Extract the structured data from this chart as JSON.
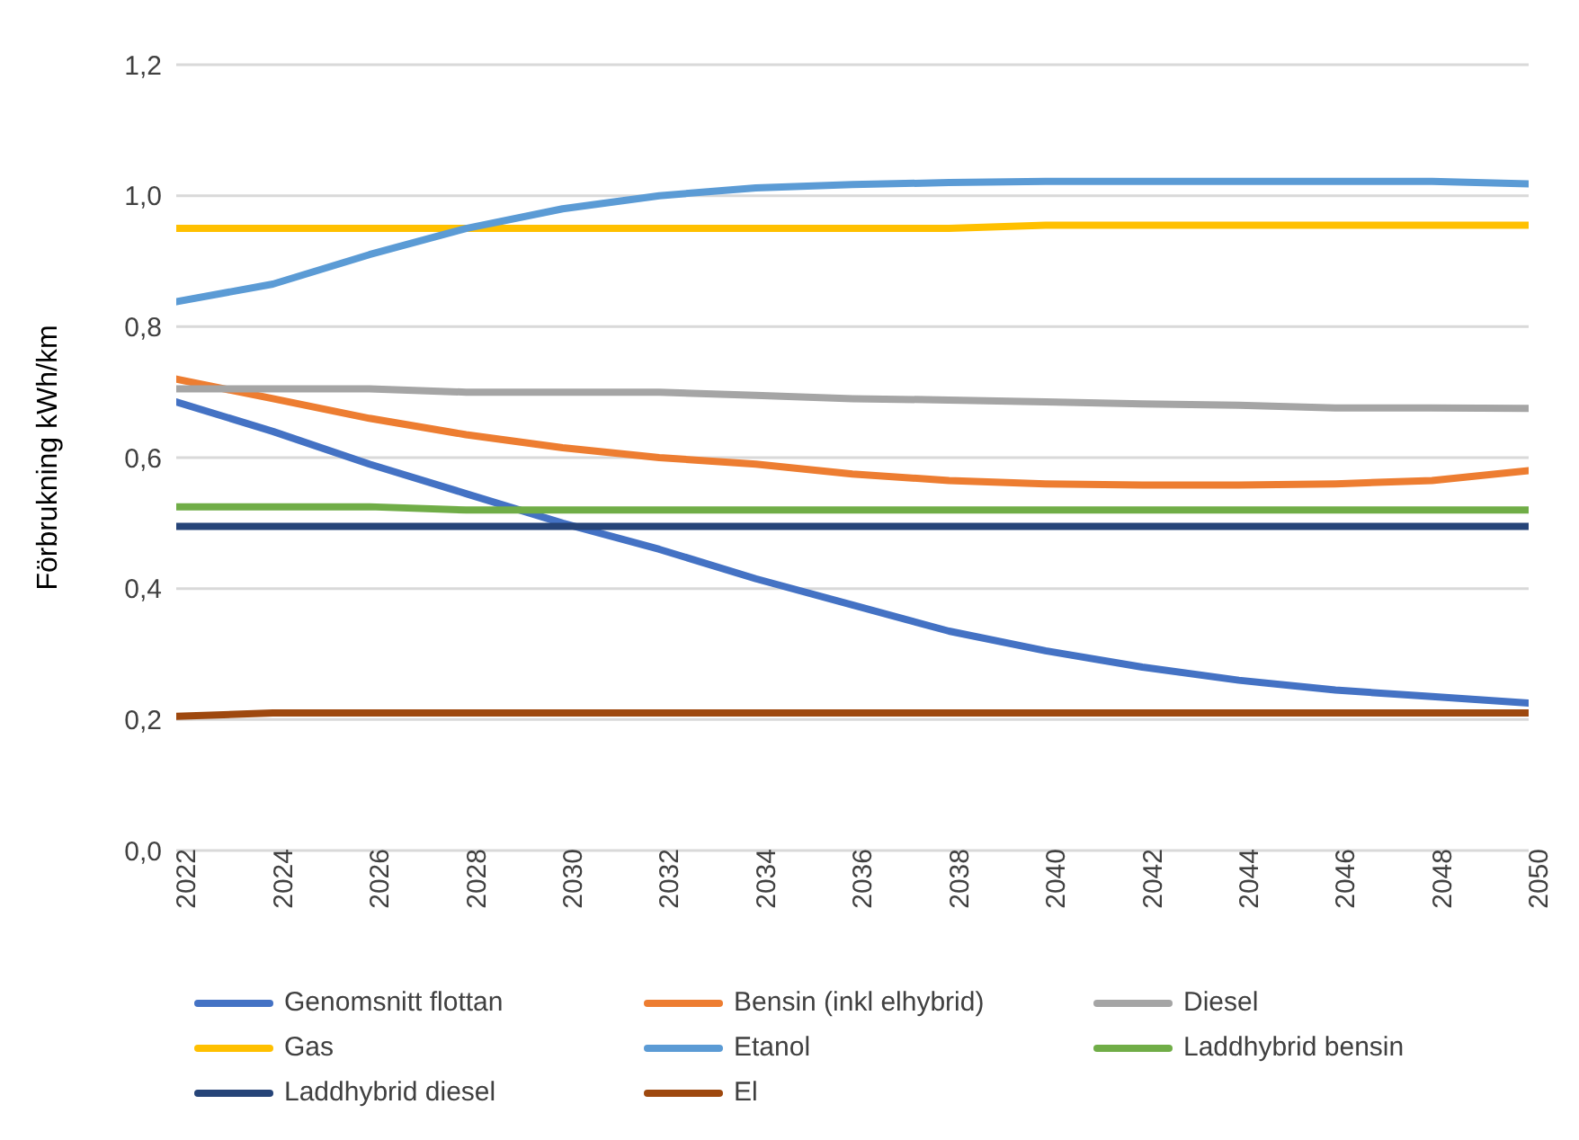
{
  "chart_data": {
    "type": "line",
    "ylabel": "Förbrukning kWh/km",
    "x": [
      2022,
      2024,
      2026,
      2028,
      2030,
      2032,
      2034,
      2036,
      2038,
      2040,
      2042,
      2044,
      2046,
      2048,
      2050
    ],
    "xlim": [
      2022,
      2050
    ],
    "xticks": [
      2022,
      2024,
      2026,
      2028,
      2030,
      2032,
      2034,
      2036,
      2038,
      2040,
      2042,
      2044,
      2046,
      2048,
      2050
    ],
    "ylim": [
      0,
      1.2
    ],
    "yticks": [
      {
        "value": 0,
        "label": "0,0"
      },
      {
        "value": 0.2,
        "label": "0,2"
      },
      {
        "value": 0.4,
        "label": "0,4"
      },
      {
        "value": 0.6,
        "label": "0,6"
      },
      {
        "value": 0.8,
        "label": "0,8"
      },
      {
        "value": 1,
        "label": "1,0"
      },
      {
        "value": 1.2,
        "label": "1,2"
      }
    ],
    "grid": "y",
    "legend": "bottom",
    "marker": "none",
    "line_style": "solid",
    "series": [
      {
        "name": "Genomsnitt flottan",
        "color": "#4472c4",
        "values": [
          0.685,
          0.64,
          0.59,
          0.545,
          0.5,
          0.46,
          0.415,
          0.375,
          0.335,
          0.305,
          0.28,
          0.26,
          0.245,
          0.235,
          0.225
        ]
      },
      {
        "name": "Bensin (inkl elhybrid)",
        "color": "#ed7d31",
        "values": [
          0.72,
          0.69,
          0.66,
          0.635,
          0.615,
          0.6,
          0.59,
          0.575,
          0.565,
          0.56,
          0.558,
          0.558,
          0.56,
          0.565,
          0.58
        ]
      },
      {
        "name": "Diesel",
        "color": "#a5a5a5",
        "values": [
          0.705,
          0.705,
          0.705,
          0.7,
          0.7,
          0.7,
          0.695,
          0.69,
          0.688,
          0.685,
          0.682,
          0.68,
          0.676,
          0.676,
          0.675
        ]
      },
      {
        "name": "Gas",
        "color": "#ffc000",
        "values": [
          0.95,
          0.95,
          0.95,
          0.95,
          0.95,
          0.95,
          0.95,
          0.95,
          0.95,
          0.955,
          0.955,
          0.955,
          0.955,
          0.955,
          0.955
        ]
      },
      {
        "name": "Etanol",
        "color": "#5b9bd5",
        "values": [
          0.838,
          0.865,
          0.91,
          0.95,
          0.98,
          1.0,
          1.012,
          1.017,
          1.02,
          1.022,
          1.022,
          1.022,
          1.022,
          1.022,
          1.018
        ]
      },
      {
        "name": "Laddhybrid bensin",
        "color": "#70ad47",
        "values": [
          0.525,
          0.525,
          0.525,
          0.52,
          0.52,
          0.52,
          0.52,
          0.52,
          0.52,
          0.52,
          0.52,
          0.52,
          0.52,
          0.52,
          0.52
        ]
      },
      {
        "name": "Laddhybrid diesel",
        "color": "#264478",
        "values": [
          0.495,
          0.495,
          0.495,
          0.495,
          0.495,
          0.495,
          0.495,
          0.495,
          0.495,
          0.495,
          0.495,
          0.495,
          0.495,
          0.495,
          0.495
        ]
      },
      {
        "name": "El",
        "color": "#9e480e",
        "values": [
          0.205,
          0.21,
          0.21,
          0.21,
          0.21,
          0.21,
          0.21,
          0.21,
          0.21,
          0.21,
          0.21,
          0.21,
          0.21,
          0.21,
          0.21
        ]
      }
    ]
  }
}
